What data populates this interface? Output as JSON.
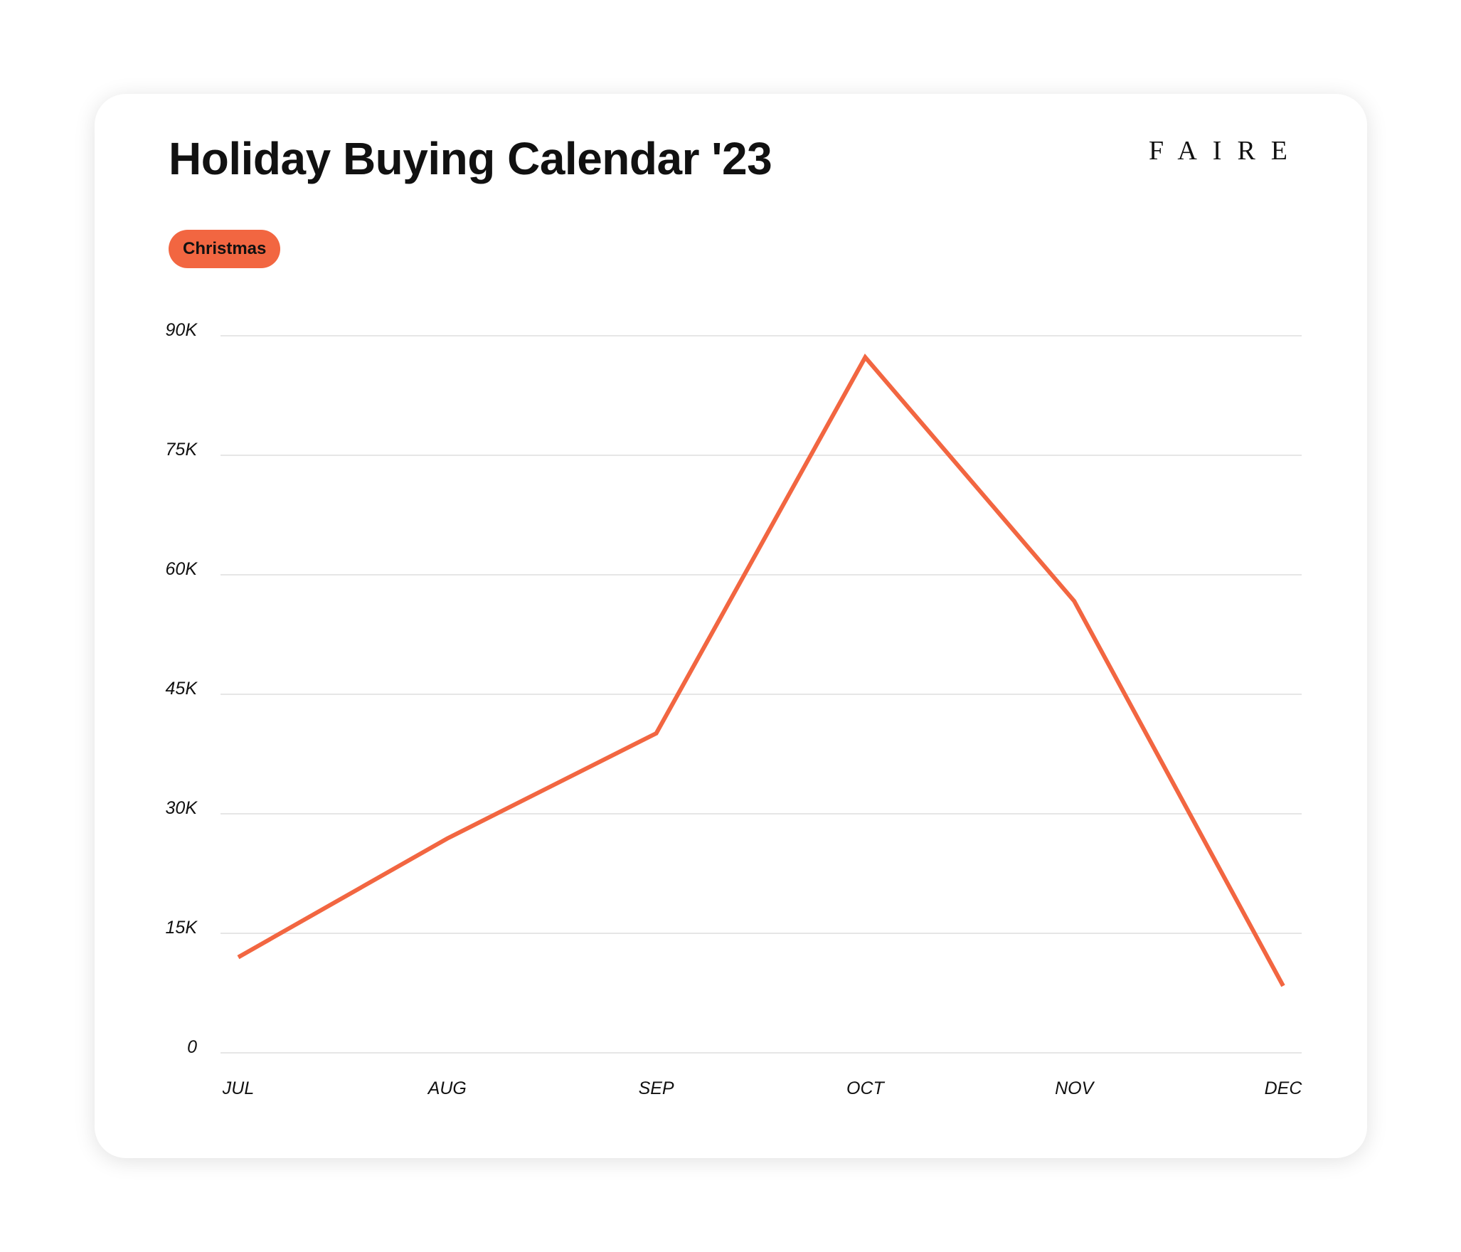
{
  "header": {
    "title": "Holiday Buying Calendar '23",
    "logo": "FAIRE"
  },
  "legend": {
    "badge": "Christmas"
  },
  "colors": {
    "line": "#f26641",
    "grid": "#e6e6e6"
  },
  "chart_data": {
    "type": "line",
    "title": "Holiday Buying Calendar '23",
    "categories": [
      "JUL",
      "AUG",
      "SEP",
      "OCT",
      "NOV",
      "DEC"
    ],
    "series": [
      {
        "name": "Christmas",
        "values": [
          12000,
          26900,
          40100,
          87300,
          56700,
          8400
        ]
      }
    ],
    "yticks": [
      0,
      15000,
      30000,
      45000,
      60000,
      75000,
      90000
    ],
    "ytick_labels": [
      "0",
      "15K",
      "30K",
      "45K",
      "60K",
      "75K",
      "90K"
    ],
    "ylim": [
      0,
      90000
    ],
    "grid": true,
    "xlabel": "",
    "ylabel": ""
  }
}
